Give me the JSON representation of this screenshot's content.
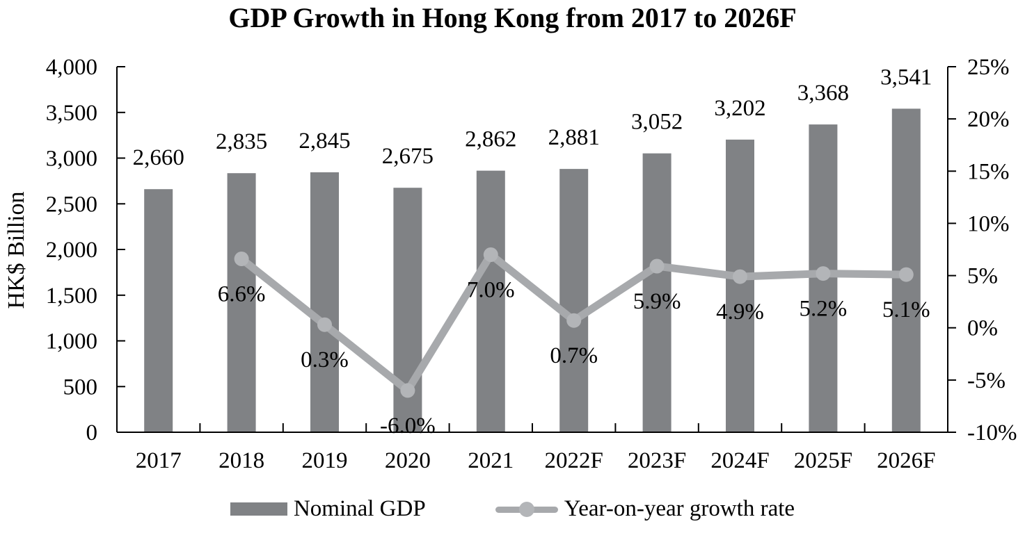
{
  "chart_data": {
    "type": "combo",
    "title": "GDP Growth in Hong Kong from 2017 to 2026F",
    "categories": [
      "2017",
      "2018",
      "2019",
      "2020",
      "2021",
      "2022F",
      "2023F",
      "2024F",
      "2025F",
      "2026F"
    ],
    "series": [
      {
        "name": "Nominal GDP",
        "type": "bar",
        "axis": "left",
        "color": "#808285",
        "values": [
          2660,
          2835,
          2845,
          2675,
          2862,
          2881,
          3052,
          3202,
          3368,
          3541
        ],
        "labels": [
          "2,660",
          "2,835",
          "2,845",
          "2,675",
          "2,862",
          "2,881",
          "3,052",
          "3,202",
          "3,368",
          "3,541"
        ]
      },
      {
        "name": "Year-on-year growth rate",
        "type": "line",
        "axis": "right",
        "color": "#a7a9ac",
        "marker_color": "#b3b5b8",
        "values": [
          null,
          6.6,
          0.3,
          -6.0,
          7.0,
          0.7,
          5.9,
          4.9,
          5.2,
          5.1
        ],
        "labels": [
          "",
          "6.6%",
          "0.3%",
          "-6.0%",
          "7.0%",
          "0.7%",
          "5.9%",
          "4.9%",
          "5.2%",
          "5.1%"
        ]
      }
    ],
    "left_axis": {
      "title": "HK$ Billion",
      "min": 0,
      "max": 4000,
      "step": 500,
      "tick_labels": [
        "0",
        "500",
        "1,000",
        "1,500",
        "2,000",
        "2,500",
        "3,000",
        "3,500",
        "4,000"
      ]
    },
    "right_axis": {
      "min": -10,
      "max": 25,
      "step": 5,
      "tick_labels": [
        "-10%",
        "-5%",
        "0%",
        "5%",
        "10%",
        "15%",
        "20%",
        "25%"
      ]
    },
    "legend_position": "bottom",
    "grid": false,
    "axis_color": "#000000"
  }
}
